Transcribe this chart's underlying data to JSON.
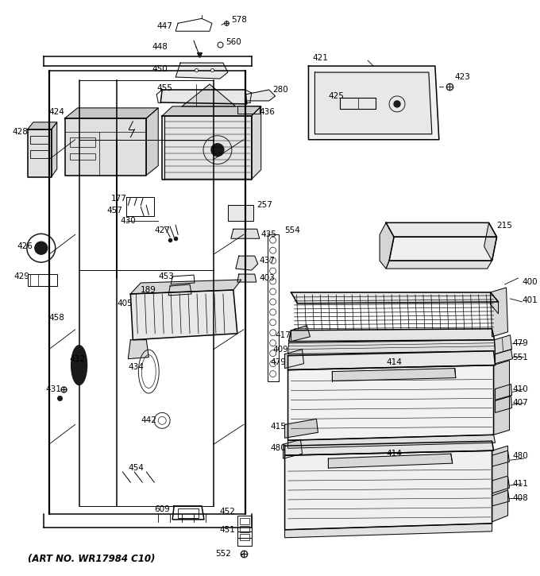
{
  "art_no": "(ART NO. WR17984 C10)",
  "bg_color": "#ffffff",
  "line_color": "#1a1a1a",
  "fig_width": 6.8,
  "fig_height": 7.25,
  "dpi": 100
}
